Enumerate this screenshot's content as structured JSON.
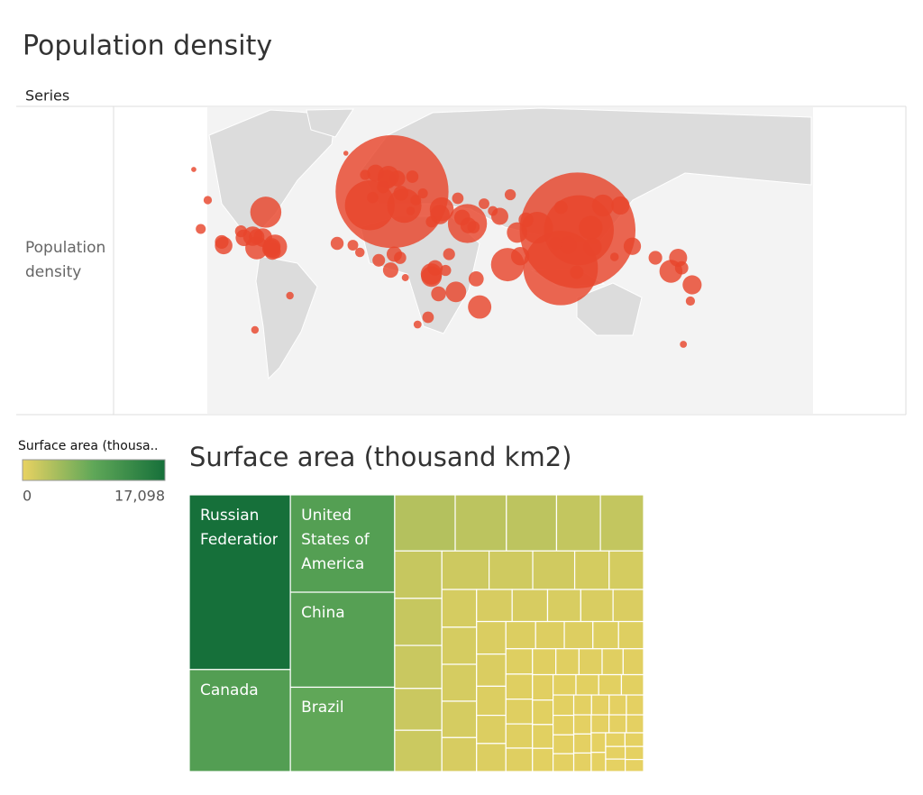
{
  "chart_data": [
    {
      "type": "bubble-map",
      "title": "Population density",
      "header": "Series",
      "row_label": "Population density",
      "color": "#e8452c",
      "x": [
        7.4,
        113.5,
        103.8,
        114.2,
        -5.3,
        50.5,
        14.4,
        73.5,
        -64.8,
        90.4,
        -59.5,
        57.5,
        121,
        166.9,
        35.8,
        29.9,
        5.3,
        34.8,
        78.9,
        4.5,
        138,
        122,
        80.7,
        128,
        179,
        171,
        -88.9,
        -66.5,
        -72.3,
        43.9,
        -61.7,
        -61.2,
        -70,
        -77.3,
        108,
        29.9,
        144.8,
        6.6,
        55.5,
        10.4,
        -2,
        12.5,
        8.7,
        69,
        84,
        -24,
        178,
        158,
        173,
        134.6,
        -61,
        -90,
        -70,
        -79,
        32,
        38,
        34,
        40,
        30,
        51,
        47.5,
        54,
        101,
        104,
        113,
        174,
        -19,
        -71,
        -51,
        -102,
        -98,
        -106,
        2.3,
        19,
        21,
        25,
        45,
        60,
        65,
        75,
        28,
        -8,
        -3.7,
        -0.2,
        12,
        18,
        -15,
        -11,
        15,
        22
      ],
      "y": [
        43.7,
        22.2,
        1.35,
        22.3,
        36.1,
        26,
        35.9,
        3.2,
        32.3,
        23.7,
        13.2,
        -20.3,
        23.7,
        -0.5,
        33.9,
        -2,
        52.1,
        31,
        21,
        50.5,
        36,
        13,
        7.9,
        36,
        -8,
        7,
        13.8,
        18.2,
        19,
        -11.9,
        12.1,
        13.2,
        12.5,
        18.1,
        14,
        -3.4,
        13.4,
        0.2,
        -4.7,
        51,
        54,
        42.8,
        9,
        30,
        28,
        15,
        -17,
        7,
        1.4,
        7.5,
        10.5,
        15.8,
        18.7,
        21.7,
        1.4,
        0,
        -13,
        9,
        27,
        25,
        29.3,
        24,
        15,
        35,
        -1,
        -41,
        65,
        -33,
        -14,
        23,
        39,
        56,
        46.2,
        52,
        39,
        42.7,
        40,
        37,
        33,
        42,
        -26,
        53,
        40.4,
        5.6,
        7,
        33,
        14,
        10,
        -4,
        -30
      ],
      "values": [
        19000,
        20000,
        8000,
        7000,
        3400,
        2000,
        1500,
        1400,
        1200,
        1250,
        660,
        620,
        650,
        600,
        660,
        500,
        500,
        400,
        450,
        380,
        345,
        360,
        350,
        530,
        380,
        330,
        310,
        360,
        400,
        460,
        330,
        280,
        590,
        270,
        310,
        460,
        300,
        220,
        210,
        240,
        280,
        200,
        220,
        290,
        200,
        140,
        50,
        160,
        150,
        40,
        270,
        160,
        220,
        110,
        220,
        90,
        200,
        110,
        100,
        240,
        240,
        120,
        135,
        150,
        150,
        19,
        3,
        25,
        25,
        65,
        36,
        4,
        120,
        120,
        80,
        65,
        100,
        80,
        60,
        90,
        100,
        70,
        95,
        130,
        120,
        40,
        80,
        55,
        20,
        30
      ]
    },
    {
      "type": "treemap",
      "title": "Surface area (thousand km2)",
      "legend_title": "Surface area (thousa..",
      "colors": [
        "#e9d262",
        "#5fa758",
        "#16703a"
      ],
      "legend_ticks": [
        0,
        {
          "value": 17098,
          "label": "17,098"
        }
      ],
      "categories": [
        "Russian Federation",
        "Canada",
        "United States of America",
        "China",
        "Brazil",
        null,
        null,
        null,
        null,
        null,
        null,
        null,
        null,
        null,
        null,
        null,
        null,
        null,
        null,
        null,
        null,
        null,
        null,
        null,
        null,
        null,
        null,
        null,
        null,
        null,
        null,
        null,
        null,
        null,
        null,
        null,
        null,
        null,
        null,
        null,
        null,
        null,
        null,
        null,
        null,
        null,
        null,
        null,
        null,
        null,
        null,
        null,
        null,
        null,
        null,
        null,
        null,
        null,
        null,
        null,
        null,
        null,
        null,
        null,
        null,
        null,
        null,
        null,
        null,
        null,
        null,
        null,
        null,
        null,
        null,
        null,
        null,
        null,
        null,
        null
      ],
      "values": [
        17098,
        9985,
        9834,
        9597,
        8516,
        3287,
        2780,
        2725,
        2382,
        2345,
        2166,
        2150,
        1964,
        1911,
        1886,
        1760,
        1629,
        1564,
        1285,
        1284,
        1267,
        1247,
        1240,
        1221,
        1142,
        1104,
        1099,
        1031,
        1001,
        947,
        924,
        912,
        825,
        799,
        796,
        784,
        756,
        753,
        677,
        659,
        653,
        644,
        638,
        623,
        604,
        587,
        582,
        580,
        528,
        513,
        506,
        488,
        475,
        463,
        450,
        447,
        447,
        435,
        407,
        391,
        378,
        357,
        342,
        338,
        331,
        330,
        324,
        322,
        313,
        310,
        301,
        300,
        274,
        268,
        256,
        246,
        238,
        237,
        231,
        215
      ]
    }
  ]
}
